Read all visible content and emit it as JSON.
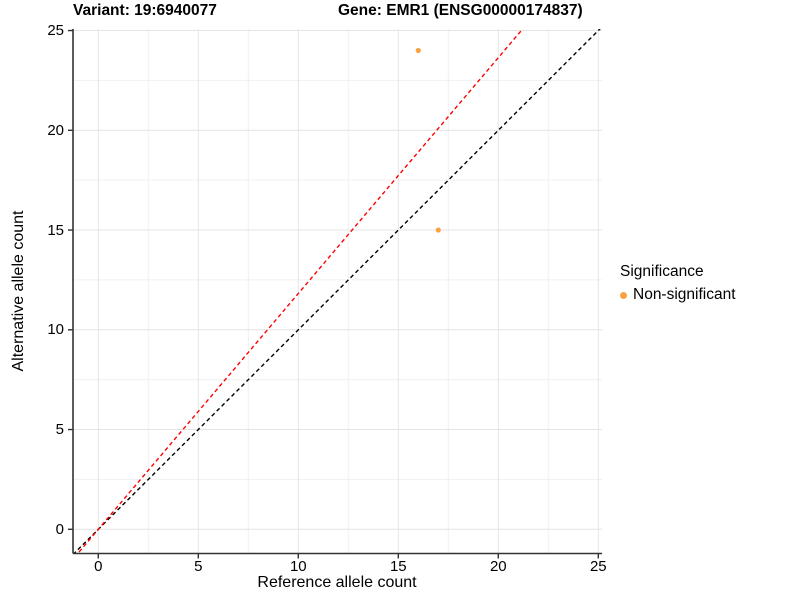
{
  "figure": {
    "titles": {
      "variant": "Variant: 19:6940077",
      "gene": "Gene: EMR1 (ENSG00000174837)"
    }
  },
  "axes": {
    "x": {
      "label": "Reference allele count",
      "ticks": [
        0,
        5,
        10,
        15,
        20,
        25
      ]
    },
    "y": {
      "label": "Alternative allele count",
      "ticks": [
        0,
        5,
        10,
        15,
        20,
        25
      ]
    }
  },
  "legend": {
    "title": "Significance",
    "items": [
      {
        "label": "Non-significant",
        "color": "#F9A242"
      }
    ]
  },
  "chart_data": {
    "type": "scatter",
    "title": "Variant: 19:6940077 | Gene: EMR1 (ENSG00000174837)",
    "xlabel": "Reference allele count",
    "ylabel": "Alternative allele count",
    "xlim": [
      0,
      25
    ],
    "ylim": [
      0,
      25
    ],
    "grid": true,
    "minor_grid_interval": 2.5,
    "major_grid_interval": 5,
    "legend_position": "right",
    "series": [
      {
        "name": "Non-significant",
        "color": "#F9A242",
        "point_radius": 2.6,
        "points": [
          [
            16,
            24
          ],
          [
            17,
            15
          ]
        ]
      }
    ],
    "reference_lines": [
      {
        "name": "identity-line",
        "slope": 1.0,
        "intercept": 0,
        "color": "#000000",
        "style": "dashed"
      },
      {
        "name": "allelic-ratio-line",
        "slope": 1.182,
        "intercept": 0,
        "color": "#FF0000",
        "style": "dashed"
      }
    ],
    "style": {
      "grid_major_color": "#E4E4E4",
      "grid_minor_color": "#F0F0F0",
      "axis_color": "#333333",
      "background": "#FFFFFF"
    }
  }
}
